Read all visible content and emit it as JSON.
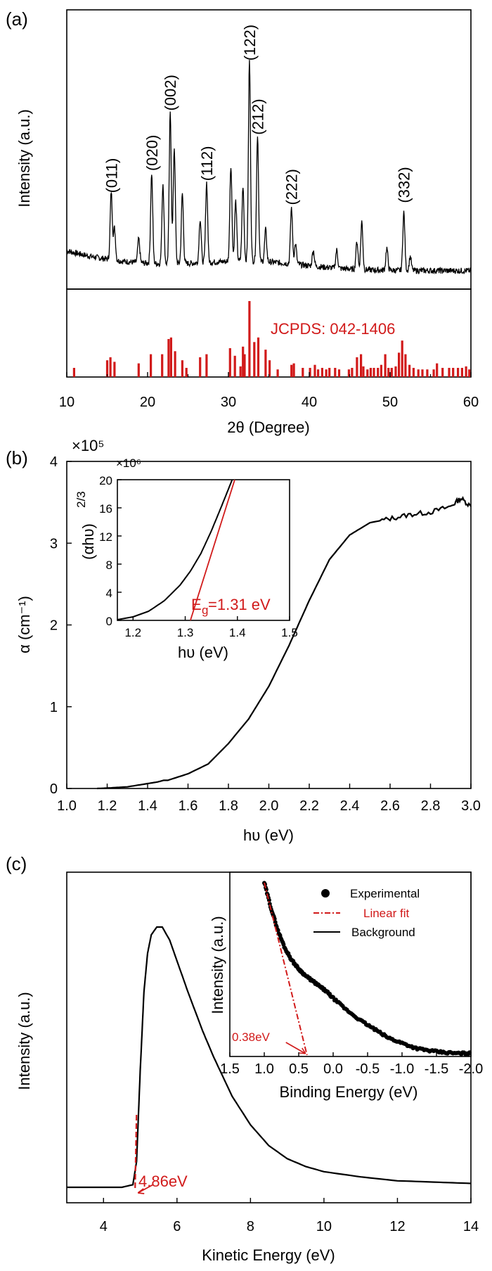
{
  "colors": {
    "curve": "#000000",
    "red": "#d11a1a"
  },
  "chart_data": [
    {
      "id": "a",
      "panel": "(a)",
      "type": "line",
      "xlabel": "2θ (Degree)",
      "ylabel": "Intensity (a.u.)",
      "xlim": [
        10,
        60
      ],
      "xticks": [
        "10",
        "20",
        "30",
        "40",
        "50",
        "60"
      ],
      "peaks": [
        {
          "x": 15.5,
          "label": "(011)",
          "h": 0.34
        },
        {
          "x": 20.5,
          "label": "(020)",
          "h": 0.45
        },
        {
          "x": 22.8,
          "label": "(002)",
          "h": 0.75
        },
        {
          "x": 27.3,
          "label": "(112)",
          "h": 0.4
        },
        {
          "x": 32.6,
          "label": "(122)",
          "h": 1.0
        },
        {
          "x": 33.6,
          "label": "(212)",
          "h": 0.63
        },
        {
          "x": 37.8,
          "label": "(222)",
          "h": 0.28
        },
        {
          "x": 51.7,
          "label": "(332)",
          "h": 0.29
        }
      ],
      "minor_peaks": [
        {
          "x": 15.9,
          "h": 0.16
        },
        {
          "x": 18.9,
          "h": 0.12
        },
        {
          "x": 21.9,
          "h": 0.4
        },
        {
          "x": 23.3,
          "h": 0.58
        },
        {
          "x": 24.3,
          "h": 0.35
        },
        {
          "x": 26.5,
          "h": 0.22
        },
        {
          "x": 30.3,
          "h": 0.48
        },
        {
          "x": 30.9,
          "h": 0.3
        },
        {
          "x": 31.8,
          "h": 0.37
        },
        {
          "x": 34.6,
          "h": 0.16
        },
        {
          "x": 38.3,
          "h": 0.1
        },
        {
          "x": 40.5,
          "h": 0.08
        },
        {
          "x": 43.4,
          "h": 0.09
        },
        {
          "x": 45.9,
          "h": 0.14
        },
        {
          "x": 46.5,
          "h": 0.24
        },
        {
          "x": 49.6,
          "h": 0.11
        },
        {
          "x": 52.5,
          "h": 0.07
        }
      ],
      "reference": {
        "label": "JCPDS: 042-1406",
        "x": [
          10.9,
          15.0,
          15.4,
          15.9,
          18.9,
          20.4,
          21.8,
          22.6,
          22.9,
          23.4,
          24.3,
          24.8,
          26.5,
          27.3,
          30.2,
          30.8,
          31.5,
          31.8,
          32.0,
          32.6,
          33.2,
          33.7,
          34.6,
          35.1,
          36.1,
          37.8,
          38.1,
          39.2,
          40.1,
          40.7,
          41.1,
          41.6,
          42.1,
          42.5,
          43.2,
          43.7,
          44.9,
          45.3,
          45.9,
          46.4,
          46.7,
          47.2,
          47.6,
          48.0,
          48.5,
          48.9,
          49.4,
          49.8,
          50.2,
          50.7,
          51.1,
          51.5,
          51.9,
          52.4,
          52.9,
          53.5,
          54.0,
          54.6,
          55.4,
          55.8,
          56.5,
          57.3,
          57.8,
          58.4,
          58.9,
          59.4,
          59.8
        ],
        "h": [
          0.12,
          0.22,
          0.26,
          0.2,
          0.18,
          0.3,
          0.3,
          0.5,
          0.52,
          0.34,
          0.22,
          0.12,
          0.26,
          0.3,
          0.38,
          0.28,
          0.14,
          0.4,
          0.3,
          1.0,
          0.46,
          0.52,
          0.36,
          0.22,
          0.1,
          0.16,
          0.18,
          0.12,
          0.12,
          0.16,
          0.1,
          0.12,
          0.1,
          0.12,
          0.12,
          0.1,
          0.1,
          0.12,
          0.26,
          0.3,
          0.14,
          0.1,
          0.12,
          0.12,
          0.12,
          0.16,
          0.3,
          0.12,
          0.12,
          0.14,
          0.32,
          0.48,
          0.3,
          0.16,
          0.12,
          0.1,
          0.1,
          0.1,
          0.1,
          0.18,
          0.12,
          0.12,
          0.12,
          0.12,
          0.12,
          0.14,
          0.1
        ]
      }
    },
    {
      "id": "b",
      "panel": "(b)",
      "type": "line",
      "xlabel": "hυ (eV)",
      "ylabel": "α (cm⁻¹)",
      "y_multiplier": "×10⁵",
      "xlim": [
        1.0,
        3.0
      ],
      "ylim": [
        0,
        4
      ],
      "xticks": [
        "1.0",
        "1.2",
        "1.4",
        "1.6",
        "1.8",
        "2.0",
        "2.2",
        "2.4",
        "2.6",
        "2.8",
        "3.0"
      ],
      "yticks": [
        "0",
        "1",
        "2",
        "3",
        "4"
      ],
      "x": [
        1.15,
        1.2,
        1.3,
        1.4,
        1.45,
        1.48,
        1.5,
        1.6,
        1.7,
        1.8,
        1.9,
        2.0,
        2.1,
        2.2,
        2.3,
        2.4,
        2.5,
        2.6,
        2.7,
        2.8,
        2.9,
        2.95,
        3.0
      ],
      "y": [
        0.0,
        0.005,
        0.02,
        0.06,
        0.08,
        0.1,
        0.1,
        0.18,
        0.3,
        0.55,
        0.85,
        1.25,
        1.75,
        2.3,
        2.8,
        3.1,
        3.25,
        3.3,
        3.35,
        3.38,
        3.45,
        3.55,
        3.45
      ],
      "inset": {
        "xlabel": "hυ (eV)",
        "ylabel": "(αhυ)",
        "ylabel_exp": "2/3",
        "y_multiplier": "×10⁶",
        "xlim": [
          1.17,
          1.5
        ],
        "ylim": [
          0,
          20
        ],
        "xticks": [
          "1.2",
          "1.3",
          "1.4",
          "1.5"
        ],
        "yticks": [
          "0",
          "4",
          "8",
          "12",
          "16",
          "20"
        ],
        "x": [
          1.17,
          1.2,
          1.23,
          1.26,
          1.29,
          1.31,
          1.33,
          1.35,
          1.37,
          1.39
        ],
        "y": [
          0.1,
          0.5,
          1.3,
          2.8,
          5.0,
          7.0,
          9.5,
          12.7,
          16.3,
          20.0
        ],
        "fit": {
          "x": [
            1.31,
            1.395
          ],
          "y": [
            0,
            20
          ]
        },
        "eg_label": "E",
        "eg_sub": "g",
        "eg_value": "=1.31 eV"
      }
    },
    {
      "id": "c",
      "panel": "(c)",
      "type": "line",
      "xlabel": "Kinetic Energy (eV)",
      "ylabel": "Intensity (a.u.)",
      "xlim": [
        3,
        14
      ],
      "xticks": [
        "4",
        "6",
        "8",
        "10",
        "12",
        "14"
      ],
      "x": [
        3.0,
        4.5,
        4.8,
        4.9,
        5.0,
        5.1,
        5.2,
        5.3,
        5.45,
        5.6,
        5.8,
        6.0,
        6.3,
        6.7,
        7.0,
        7.5,
        8.0,
        8.5,
        9.0,
        9.5,
        10.0,
        11.0,
        12.0,
        13.0,
        14.0
      ],
      "y": [
        0.0,
        0.0,
        0.01,
        0.1,
        0.45,
        0.75,
        0.9,
        0.97,
        1.0,
        1.0,
        0.95,
        0.87,
        0.75,
        0.6,
        0.5,
        0.35,
        0.24,
        0.16,
        0.11,
        0.08,
        0.06,
        0.04,
        0.025,
        0.02,
        0.015
      ],
      "cutoff_label": "4.86eV",
      "cutoff_x": 4.86,
      "inset": {
        "xlabel": "Binding Energy (eV)",
        "ylabel": "Intensity (a.u.)",
        "xlim": [
          1.5,
          -2.0
        ],
        "xticks": [
          "1.5",
          "1.0",
          "0.5",
          "0.0",
          "-0.5",
          "-1.0",
          "-1.5",
          "-2.0"
        ],
        "x": [
          1.0,
          0.9,
          0.8,
          0.7,
          0.6,
          0.5,
          0.4,
          0.3,
          0.2,
          0.1,
          0.0,
          -0.2,
          -0.4,
          -0.6,
          -0.8,
          -1.0,
          -1.2,
          -1.4,
          -1.6,
          -1.8,
          -2.0
        ],
        "y": [
          1.0,
          0.85,
          0.72,
          0.62,
          0.55,
          0.5,
          0.46,
          0.43,
          0.4,
          0.37,
          0.33,
          0.26,
          0.2,
          0.15,
          0.1,
          0.07,
          0.04,
          0.025,
          0.015,
          0.01,
          0.01
        ],
        "fit": {
          "x": [
            1.0,
            0.38
          ],
          "y": [
            1.0,
            0.0
          ]
        },
        "vbm_label": "0.38eV",
        "legend": [
          "Experimental",
          "Linear fit",
          "Background"
        ]
      }
    }
  ]
}
